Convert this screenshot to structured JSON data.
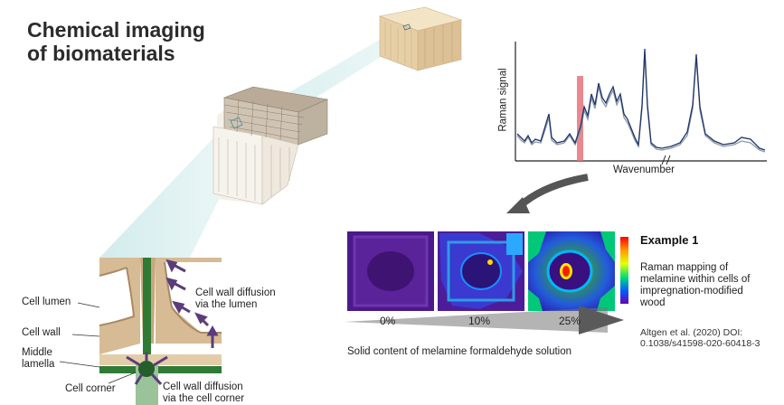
{
  "title": {
    "line1": "Chemical imaging",
    "line2": "of biomaterials"
  },
  "spectrum": {
    "ylabel": "Raman signal",
    "xlabel": "Wavenumber"
  },
  "wood_labels": {
    "cell_lumen": "Cell lumen",
    "cell_wall": "Cell wall",
    "middle_lamella_1": "Middle",
    "middle_lamella_2": "lamella",
    "cell_corner": "Cell corner",
    "diffusion_lumen_1": "Cell wall diffusion",
    "diffusion_lumen_2": "via the lumen",
    "diffusion_corner_1": "Cell wall diffusion",
    "diffusion_corner_2": "via the cell corner"
  },
  "maps": {
    "percentages": [
      "0%",
      "10%",
      "25%"
    ],
    "axis_label": "Solid content of melamine formaldehyde solution"
  },
  "example": {
    "title": "Example 1",
    "desc": [
      "Raman mapping of",
      "melamine within cells of",
      "impregnation-modified",
      "wood"
    ],
    "ref": [
      "Altgen et al. (2020) DOI:",
      "0.1038/s41598-020-60418-3"
    ]
  },
  "colors": {
    "accent_arrow": "#5a3d7a",
    "highlight": "#e8737a",
    "spectrum": "#1f3566"
  }
}
